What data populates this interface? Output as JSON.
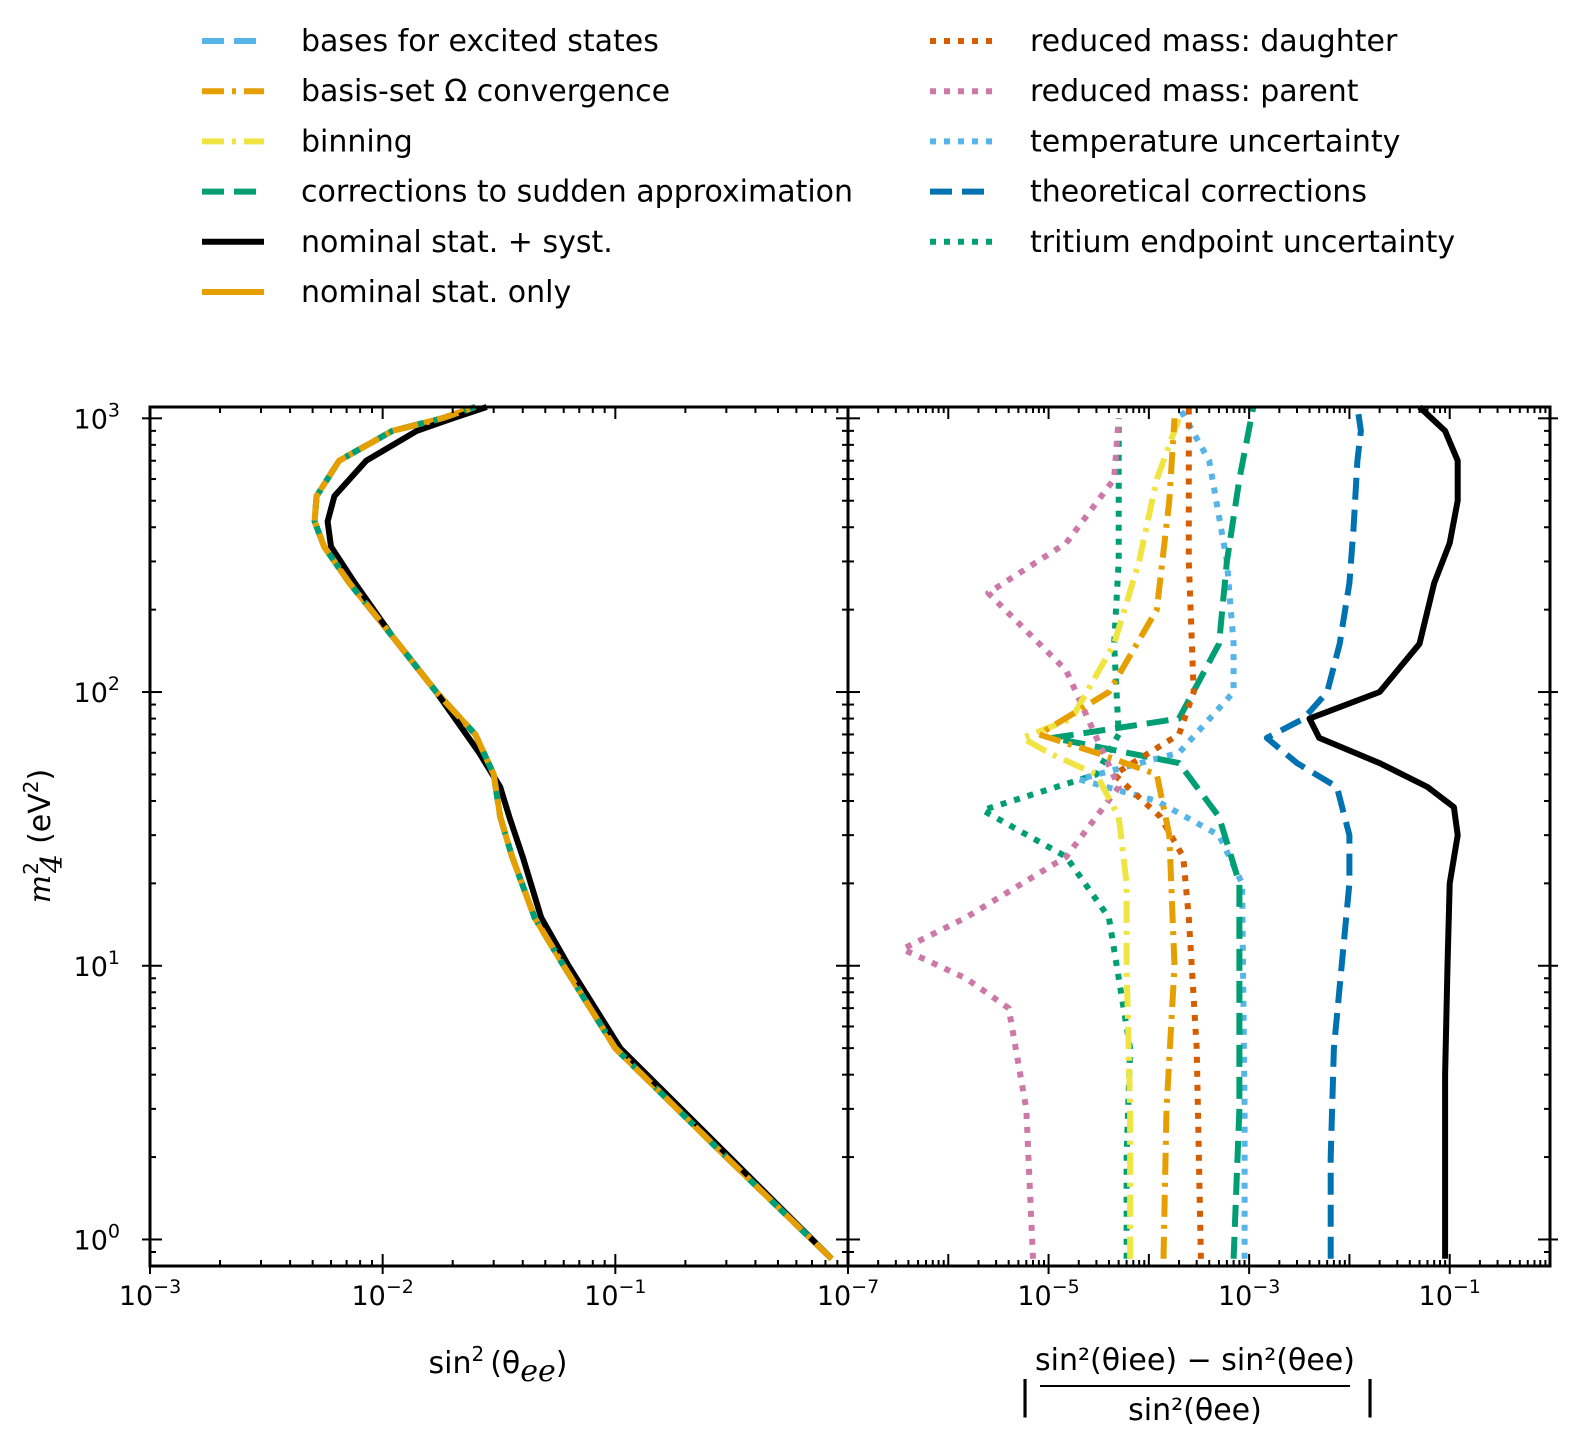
{
  "chart_data": [
    {
      "type": "line",
      "panel": "left",
      "xlabel": "sin²(θee)",
      "ylabel": "m₄² (eV²)",
      "xscale": "log",
      "yscale": "log",
      "xlim": [
        0.001,
        1
      ],
      "ylim": [
        0.8,
        1100
      ],
      "xticks": [
        0.001,
        0.01,
        0.1
      ],
      "yticks": [
        1,
        10,
        100,
        1000
      ],
      "series": [
        {
          "name": "nominal stat. only",
          "x": [
            0.85,
            0.3,
            0.1,
            0.06,
            0.045,
            0.036,
            0.032,
            0.03,
            0.025,
            0.017,
            0.011,
            0.0072,
            0.0056,
            0.0051,
            0.0052,
            0.0065,
            0.011,
            0.018,
            0.025
          ],
          "y": [
            0.85,
            2,
            5,
            10,
            15,
            25,
            35,
            50,
            70,
            100,
            160,
            250,
            340,
            420,
            520,
            700,
            900,
            1000,
            1100
          ]
        },
        {
          "name": "nominal stat. + syst.",
          "x": [
            0.85,
            0.31,
            0.105,
            0.063,
            0.048,
            0.04,
            0.035,
            0.032,
            0.026,
            0.017,
            0.011,
            0.0076,
            0.006,
            0.0058,
            0.0062,
            0.0085,
            0.014,
            0.02,
            0.028
          ],
          "y": [
            0.85,
            2,
            5,
            10,
            15,
            25,
            35,
            45,
            60,
            100,
            160,
            250,
            340,
            420,
            520,
            700,
            900,
            1000,
            1100
          ]
        }
      ]
    },
    {
      "type": "line",
      "panel": "right",
      "xlabel": "| (sin²(θiee) − sin²(θee)) / sin²(θee) |",
      "xscale": "log",
      "yscale": "log",
      "xlim": [
        1e-07,
        1
      ],
      "ylim": [
        0.8,
        1100
      ],
      "xticks": [
        1e-07,
        1e-05,
        0.001,
        0.1
      ],
      "series": [
        {
          "name": "nominal stat. + syst.",
          "x": [
            0.09,
            0.09,
            0.09,
            0.095,
            0.1,
            0.12,
            0.11,
            0.06,
            0.02,
            0.005,
            0.004,
            0.02,
            0.05,
            0.07,
            0.1,
            0.12,
            0.12,
            0.09,
            0.05
          ],
          "y": [
            0.85,
            1.5,
            4,
            10,
            20,
            30,
            38,
            45,
            55,
            68,
            80,
            100,
            150,
            250,
            350,
            500,
            700,
            900,
            1100
          ]
        },
        {
          "name": "theoretical corrections",
          "x": [
            0.0065,
            0.0065,
            0.007,
            0.01,
            0.01,
            0.0075,
            0.003,
            0.0015,
            0.0035,
            0.006,
            0.008,
            0.01,
            0.011,
            0.012,
            0.013,
            0.012
          ],
          "y": [
            0.85,
            2,
            5,
            20,
            30,
            45,
            55,
            68,
            80,
            100,
            150,
            250,
            400,
            700,
            900,
            1100
          ]
        },
        {
          "name": "tritium endpoint uncertainty",
          "x": [
            6e-05,
            6e-05,
            6.5e-05,
            4e-05,
            1.5e-05,
            2.2e-06,
            3e-05,
            5e-05,
            4.5e-05,
            5e-05,
            5e-05,
            5e-05,
            5e-05
          ],
          "y": [
            0.85,
            2,
            5,
            15,
            25,
            37,
            50,
            70,
            150,
            300,
            500,
            900,
            1000
          ]
        },
        {
          "name": "temperature uncertainty",
          "x": [
            0.0009,
            0.0009,
            0.00085,
            0.0005,
            0.00012,
            2e-05,
            0.0002,
            0.0007,
            0.0007,
            0.0006,
            0.0004,
            0.0002
          ],
          "y": [
            0.85,
            3,
            20,
            30,
            40,
            48,
            60,
            100,
            150,
            300,
            700,
            1100
          ]
        },
        {
          "name": "corrections to sudden approximation",
          "x": [
            0.0007,
            0.0008,
            0.0008,
            0.0008,
            0.0005,
            0.0002,
            1.1e-05,
            0.0002,
            0.0005,
            0.0006,
            0.0008,
            0.0011
          ],
          "y": [
            0.85,
            3,
            10,
            20,
            35,
            55,
            68,
            80,
            150,
            300,
            600,
            1100
          ]
        },
        {
          "name": "reduced mass: daughter",
          "x": [
            0.00033,
            0.0003,
            0.00025,
            0.00022,
            0.00013,
            4.5e-05,
            0.0002,
            0.00028,
            0.00025,
            0.00025
          ],
          "y": [
            0.85,
            5,
            15,
            25,
            35,
            50,
            70,
            100,
            300,
            1100
          ]
        },
        {
          "name": "reduced mass: parent",
          "x": [
            7e-06,
            6e-06,
            4e-06,
            1.5e-06,
            3.5e-07,
            1.5e-06,
            1.5e-05,
            5e-05,
            1.5e-05,
            2.5e-06,
            1.5e-05,
            4.5e-05,
            5e-05
          ],
          "y": [
            0.85,
            3,
            7,
            9,
            11.5,
            15,
            25,
            45,
            120,
            230,
            350,
            600,
            1000
          ]
        },
        {
          "name": "binning",
          "x": [
            6.5e-05,
            6.5e-05,
            6e-05,
            6e-05,
            5e-05,
            3e-05,
            1e-05,
            5.5e-06,
            1.7e-05,
            4.5e-05,
            8e-05,
            0.00012,
            0.0002
          ],
          "y": [
            0.85,
            3,
            10,
            20,
            35,
            50,
            60,
            68,
            80,
            150,
            300,
            600,
            1000
          ]
        },
        {
          "name": "basis-set Ω convergence",
          "x": [
            0.00014,
            0.00015,
            0.00018,
            0.00016,
            0.00012,
            3e-05,
            8e-06,
            4e-05,
            0.00012,
            0.00016,
            0.00018
          ],
          "y": [
            0.85,
            3,
            10,
            30,
            50,
            60,
            70,
            100,
            200,
            500,
            1000
          ]
        }
      ]
    }
  ],
  "legend": {
    "left_column": [
      {
        "label": "bases for excited states",
        "color": "#56b4e9",
        "style": "dashed"
      },
      {
        "label": "basis-set Ω convergence",
        "color": "#e69f00",
        "style": "dashdot"
      },
      {
        "label": "binning",
        "color": "#f0e442",
        "style": "dashdot"
      },
      {
        "label": "corrections to sudden approximation",
        "color": "#009e73",
        "style": "dashed"
      },
      {
        "label": "nominal stat. + syst.",
        "color": "#000000",
        "style": "solid"
      },
      {
        "label": "nominal stat. only",
        "color": "#e69f00",
        "style": "solid"
      }
    ],
    "right_column": [
      {
        "label": "reduced mass: daughter",
        "color": "#d55e00",
        "style": "dotted"
      },
      {
        "label": "reduced mass: parent",
        "color": "#cc79a7",
        "style": "dotted"
      },
      {
        "label": "temperature uncertainty",
        "color": "#56b4e9",
        "style": "dotted"
      },
      {
        "label": "theoretical corrections",
        "color": "#0072b2",
        "style": "dashed"
      },
      {
        "label": "tritium endpoint uncertainty",
        "color": "#009e73",
        "style": "dotted"
      }
    ]
  },
  "axis_labels": {
    "ylabel_main": "m",
    "ylabel_sup": "2",
    "ylabel_sub": "4",
    "ylabel_unit": "(eV",
    "ylabel_unit_sup": "2",
    "ylabel_close": ")",
    "xlabel_left": "sin",
    "xlabel_left_sup": "2",
    "xlabel_left_arg": "(θ",
    "xlabel_left_sub": "ee",
    "xlabel_left_close": ")",
    "xlabel_right_bar": "|",
    "xlabel_right_num": "sin²(θiee) − sin²(θee)",
    "xlabel_right_den": "sin²(θee)"
  },
  "tick_labels": {
    "y": [
      {
        "base": "10",
        "exp": "3"
      },
      {
        "base": "10",
        "exp": "2"
      },
      {
        "base": "10",
        "exp": "1"
      },
      {
        "base": "10",
        "exp": "0"
      }
    ],
    "x_left": [
      {
        "base": "10",
        "exp": "−3"
      },
      {
        "base": "10",
        "exp": "−2"
      },
      {
        "base": "10",
        "exp": "−1"
      }
    ],
    "x_right": [
      {
        "base": "10",
        "exp": "−7"
      },
      {
        "base": "10",
        "exp": "−5"
      },
      {
        "base": "10",
        "exp": "−3"
      },
      {
        "base": "10",
        "exp": "−1"
      }
    ]
  }
}
